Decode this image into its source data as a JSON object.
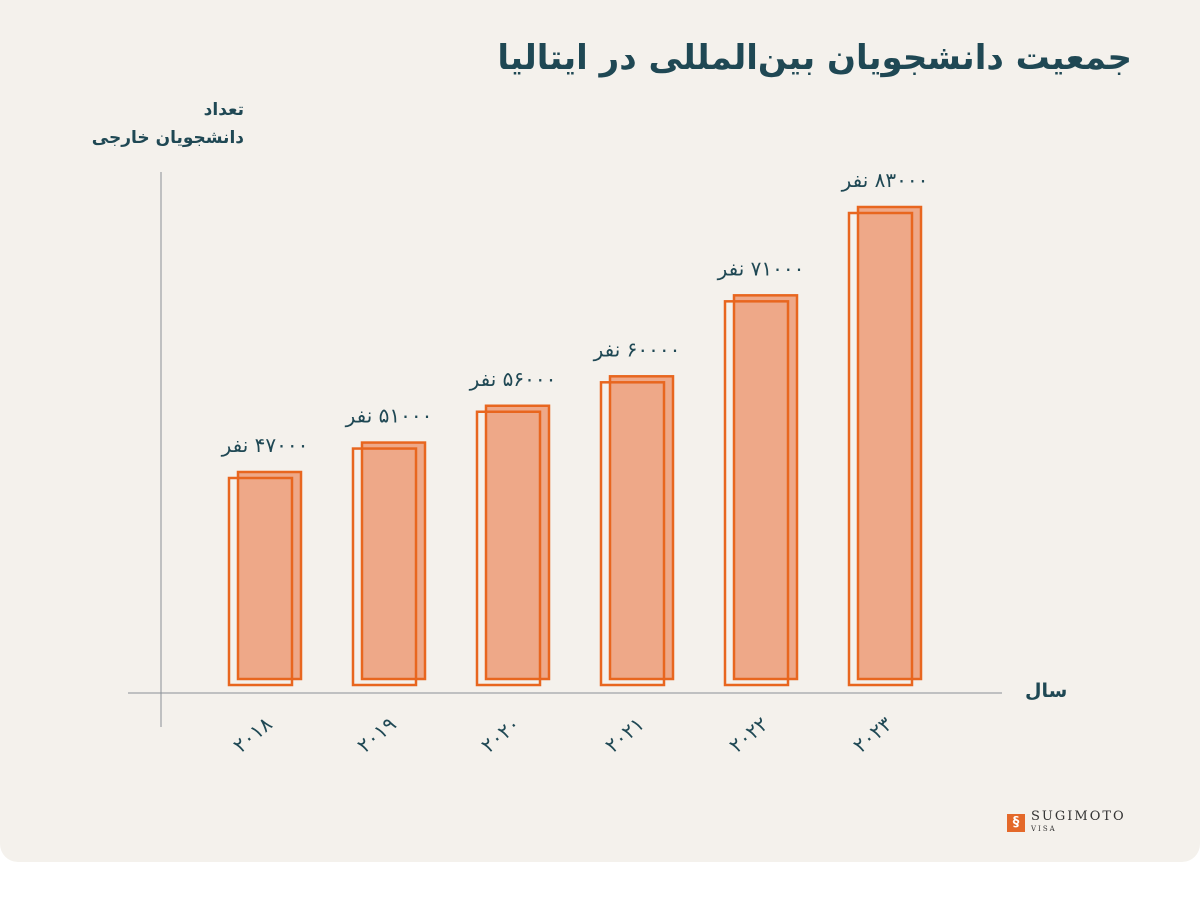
{
  "chart_data": {
    "type": "bar",
    "title": "جمعیت دانشجویان بین‌المللی در ایتالیا",
    "ylabel_line1": "تعداد",
    "ylabel_line2": "دانشجویان خارجی",
    "xlabel": "سال",
    "categories": [
      "۲۰۱۸",
      "۲۰۱۹",
      "۲۰۲۰",
      "۲۰۲۱",
      "۲۰۲۲",
      "۲۰۲۳"
    ],
    "values": [
      47000,
      51000,
      56000,
      60000,
      71000,
      83000
    ],
    "data_labels": [
      "۴۷۰۰۰ نفر",
      "۵۱۰۰۰ نفر",
      "۵۶۰۰۰ نفر",
      "۶۰۰۰۰ نفر",
      "۷۱۰۰۰ نفر",
      "۸۳۰۰۰ نفر"
    ],
    "grid": false,
    "colors": {
      "bar_fill": "#eea888",
      "bar_stroke": "#e8661f",
      "text": "#1f4854",
      "axis": "#8a8f96"
    }
  },
  "logo": {
    "name": "SUGIMOTO",
    "sub": "VISA"
  }
}
